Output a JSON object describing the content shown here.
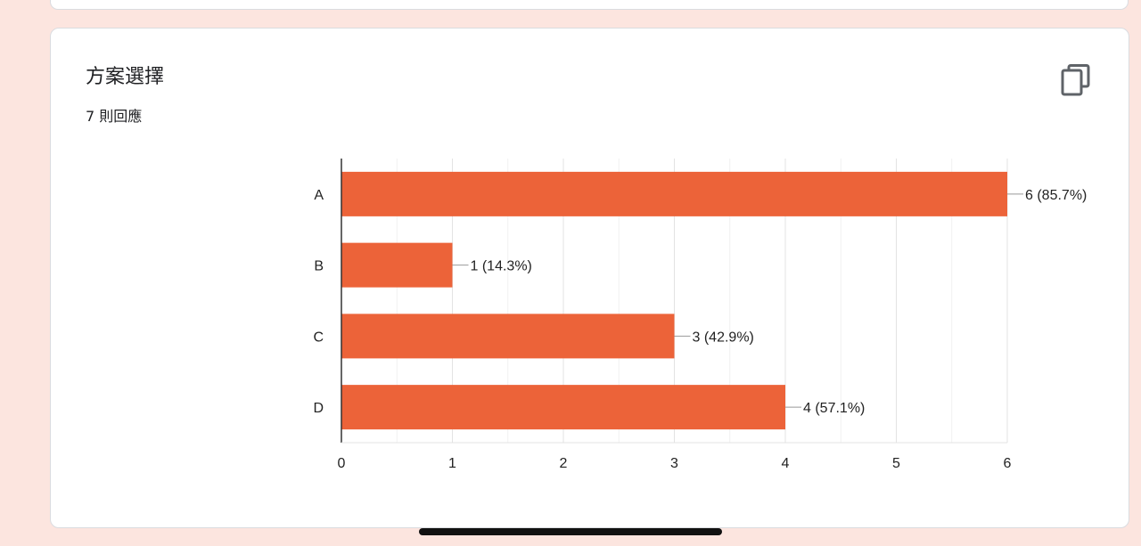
{
  "card": {
    "title": "方案選擇",
    "subtitle": "7 則回應",
    "copy_icon": "copy-icon"
  },
  "colors": {
    "bar": "#ec6339",
    "background": "#fce5df",
    "card": "#ffffff"
  },
  "chart_data": {
    "type": "bar",
    "orientation": "horizontal",
    "categories": [
      "A",
      "B",
      "C",
      "D"
    ],
    "values": [
      6,
      1,
      3,
      4
    ],
    "data_labels": [
      "6 (85.7%)",
      "1 (14.3%)",
      "3 (42.9%)",
      "4 (57.1%)"
    ],
    "xlim": [
      0,
      6
    ],
    "x_ticks": [
      "0",
      "1",
      "2",
      "3",
      "4",
      "5",
      "6"
    ],
    "grid": true,
    "legend": "none",
    "title": "",
    "xlabel": "",
    "ylabel": ""
  }
}
